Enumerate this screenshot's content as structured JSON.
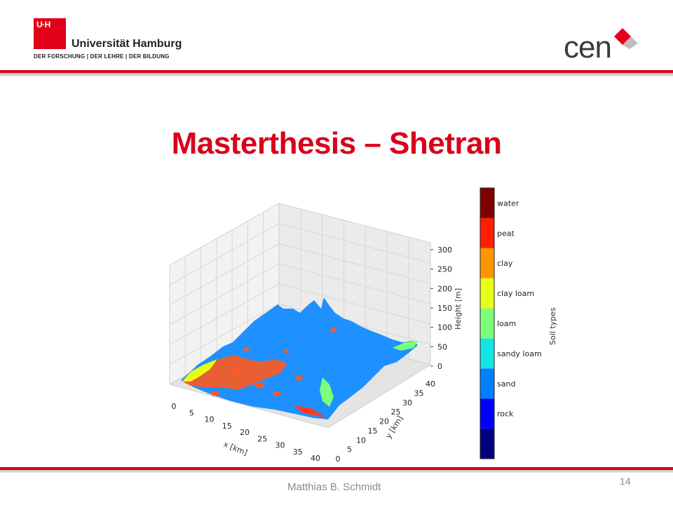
{
  "header": {
    "uhh_box_text": "U·H",
    "university_name": "Universität Hamburg",
    "motto": "DER FORSCHUNG | DER LEHRE | DER BILDUNG",
    "partner_logo_text": "cen"
  },
  "slide": {
    "title": "Masterthesis – Shetran",
    "author": "Matthias B. Schmidt",
    "page_number": "14"
  },
  "colors": {
    "accent": "#d9001b",
    "cen_diamond": "#e2001a",
    "dominant_soil": "#1e90ff"
  },
  "chart_data": {
    "type": "surface3d",
    "xlabel": "x [km]",
    "ylabel": "y [km]",
    "zlabel": "Height [m]",
    "x_ticks": [
      0,
      5,
      10,
      15,
      20,
      25,
      30,
      35,
      40
    ],
    "y_ticks": [
      0,
      5,
      10,
      15,
      20,
      25,
      30,
      35,
      40
    ],
    "z_ticks": [
      0,
      50,
      100,
      150,
      200,
      250,
      300
    ],
    "xlim": [
      0,
      40
    ],
    "ylim": [
      0,
      40
    ],
    "zlim": [
      0,
      300
    ],
    "colorbar": {
      "label": "Soil types",
      "categories": [
        {
          "label": "",
          "color": "#00007f"
        },
        {
          "label": "rock",
          "color": "#0000ff"
        },
        {
          "label": "sand",
          "color": "#0080ff"
        },
        {
          "label": "sandy loam",
          "color": "#14e6e6"
        },
        {
          "label": "loam",
          "color": "#7cff79"
        },
        {
          "label": "clay loam",
          "color": "#e6ff14"
        },
        {
          "label": "clay",
          "color": "#ff9600"
        },
        {
          "label": "peat",
          "color": "#ff1e00"
        },
        {
          "label": "water",
          "color": "#7f0000"
        }
      ]
    }
  }
}
